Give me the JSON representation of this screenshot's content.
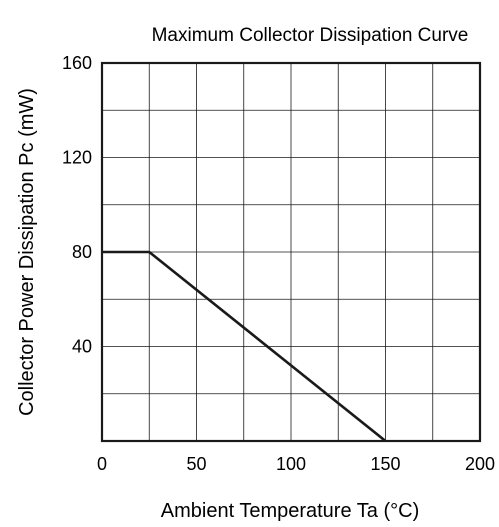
{
  "chart_data": {
    "type": "line",
    "title": "Maximum Collector Dissipation Curve",
    "xlabel": "Ambient Temperature  Ta (°C)",
    "ylabel": "Collector Power Dissipation  Pc (mW)",
    "xlim": [
      0,
      200
    ],
    "ylim": [
      0,
      160
    ],
    "x_ticks": [
      0,
      50,
      100,
      150,
      200
    ],
    "y_ticks": [
      40,
      80,
      120,
      160
    ],
    "x_grid": [
      25,
      50,
      75,
      100,
      125,
      150,
      175
    ],
    "y_grid": [
      20,
      40,
      60,
      80,
      100,
      120,
      140
    ],
    "grid": true,
    "series": [
      {
        "x": [
          0,
          25,
          150
        ],
        "y": [
          80,
          80,
          0
        ],
        "color": "#1a1a1a"
      }
    ]
  }
}
